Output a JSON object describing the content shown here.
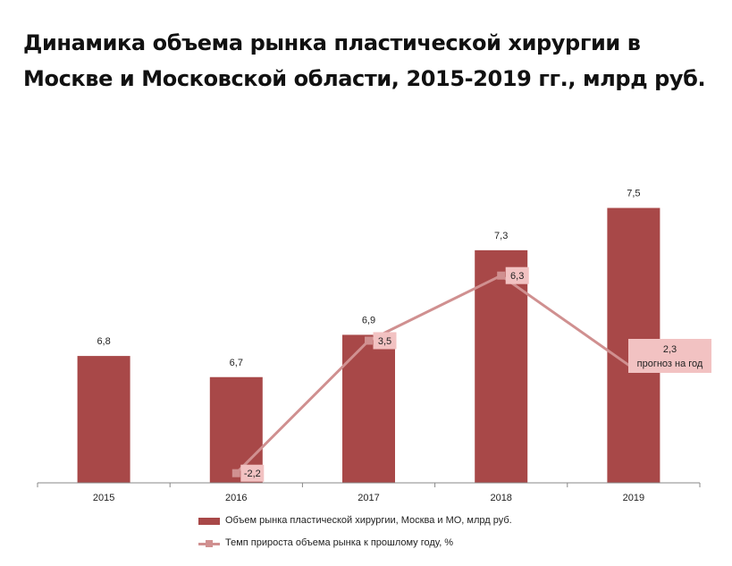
{
  "title": {
    "line1": "Динамика объема рынка пластической хирургии в",
    "line2": "Москве и Московской области, 2015-2019 гг., млрд руб."
  },
  "colors": {
    "bar": "#a84848",
    "line": "#d09090",
    "label_bg": "#f2c2c2",
    "axis": "#888888",
    "text": "#222222"
  },
  "chart_data": {
    "type": "bar+line",
    "title": "Динамика объема рынка пластической хирургии в Москве и Московской области, 2015-2019 гг., млрд руб.",
    "categories": [
      "2015",
      "2016",
      "2017",
      "2018",
      "2019"
    ],
    "series": [
      {
        "name": "Объем рынка пластической хирургии, Москва и МО, млрд руб.",
        "type": "bar",
        "values": [
          6.8,
          6.7,
          6.9,
          7.3,
          7.5
        ],
        "labels": [
          "6,8",
          "6,7",
          "6,9",
          "7,3",
          "7,5"
        ]
      },
      {
        "name": "Темп прироста объема рынка к прошлому году, %",
        "type": "line",
        "x": [
          "2016",
          "2017",
          "2018",
          "2019"
        ],
        "values": [
          -2.2,
          3.5,
          6.3,
          2.3
        ],
        "labels": [
          "-2,2",
          "3,5",
          "6,3",
          "2,3"
        ],
        "annotation": "прогноз на год"
      }
    ],
    "legend_position": "bottom",
    "grid": false
  }
}
